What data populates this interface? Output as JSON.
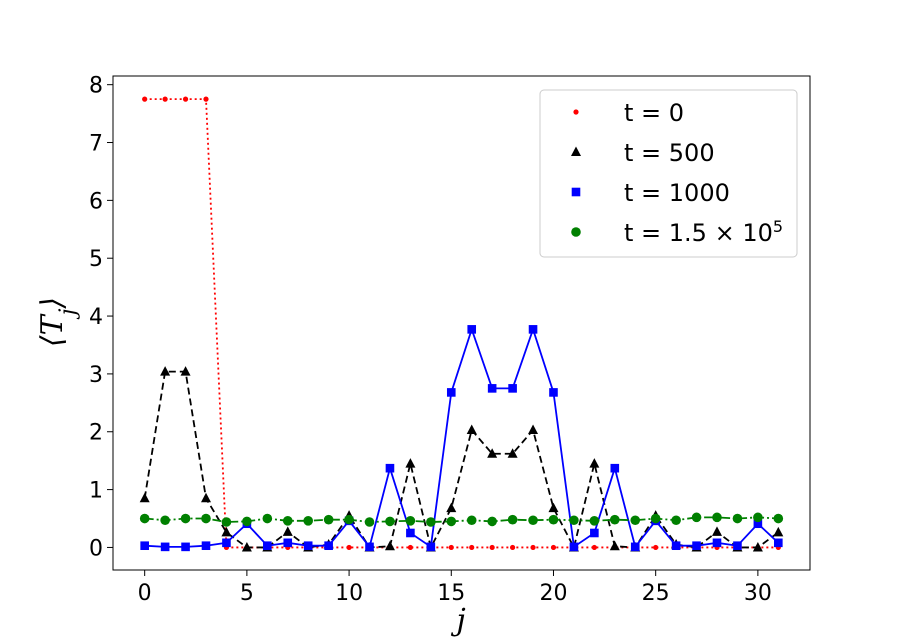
{
  "chart_data": {
    "type": "line",
    "xlabel": "j",
    "ylabel": "⟨T_j⟩",
    "xlim": [
      -1.55,
      32.55
    ],
    "ylim": [
      -0.39,
      8.15
    ],
    "xticks": [
      0,
      5,
      10,
      15,
      20,
      25,
      30
    ],
    "yticks": [
      0,
      1,
      2,
      3,
      4,
      5,
      6,
      7,
      8
    ],
    "grid": false,
    "legend_position": "top-right",
    "x": [
      0,
      1,
      2,
      3,
      4,
      5,
      6,
      7,
      8,
      9,
      10,
      11,
      12,
      13,
      14,
      15,
      16,
      17,
      18,
      19,
      20,
      21,
      22,
      23,
      24,
      25,
      26,
      27,
      28,
      29,
      30,
      31
    ],
    "series": [
      {
        "name": "t = 0",
        "legend_main": "t = 0",
        "legend_sup": "",
        "color": "#ff0000",
        "marker": "dot",
        "linestyle": "dotted",
        "values": [
          7.75,
          7.75,
          7.75,
          7.75,
          0,
          0,
          0,
          0,
          0,
          0,
          0,
          0,
          0,
          0,
          0,
          0,
          0,
          0,
          0,
          0,
          0,
          0,
          0,
          0,
          0,
          0,
          0,
          0,
          0,
          0,
          0,
          0
        ]
      },
      {
        "name": "t = 500",
        "legend_main": "t = 500",
        "legend_sup": "",
        "color": "#000000",
        "marker": "triangle",
        "linestyle": "dashed",
        "values": [
          0.85,
          3.04,
          3.04,
          0.85,
          0.26,
          0.0,
          0.0,
          0.27,
          0.0,
          0.05,
          0.55,
          0.0,
          0.02,
          1.45,
          0.0,
          0.68,
          2.03,
          1.62,
          1.62,
          2.03,
          0.68,
          0.0,
          1.45,
          0.02,
          0.0,
          0.55,
          0.05,
          0.0,
          0.27,
          0.0,
          0.0,
          0.26
        ]
      },
      {
        "name": "t = 1000",
        "legend_main": "t = 1000",
        "legend_sup": "",
        "color": "#0000ff",
        "marker": "square",
        "linestyle": "solid",
        "values": [
          0.03,
          0.01,
          0.01,
          0.03,
          0.08,
          0.41,
          0.03,
          0.08,
          0.03,
          0.03,
          0.46,
          0.01,
          1.37,
          0.25,
          0.01,
          2.68,
          3.77,
          2.75,
          2.75,
          3.77,
          2.68,
          0.01,
          0.25,
          1.37,
          0.01,
          0.46,
          0.03,
          0.03,
          0.08,
          0.03,
          0.41,
          0.08
        ]
      },
      {
        "name": "t = 1.5 × 10^5",
        "legend_main": "t = 1.5 × 10",
        "legend_sup": "5",
        "color": "#008000",
        "marker": "circle",
        "linestyle": "dashdot",
        "values": [
          0.5,
          0.47,
          0.5,
          0.5,
          0.44,
          0.45,
          0.5,
          0.46,
          0.46,
          0.48,
          0.48,
          0.44,
          0.45,
          0.46,
          0.44,
          0.45,
          0.47,
          0.45,
          0.48,
          0.47,
          0.48,
          0.47,
          0.46,
          0.48,
          0.47,
          0.5,
          0.47,
          0.52,
          0.52,
          0.5,
          0.52,
          0.5
        ]
      }
    ]
  }
}
